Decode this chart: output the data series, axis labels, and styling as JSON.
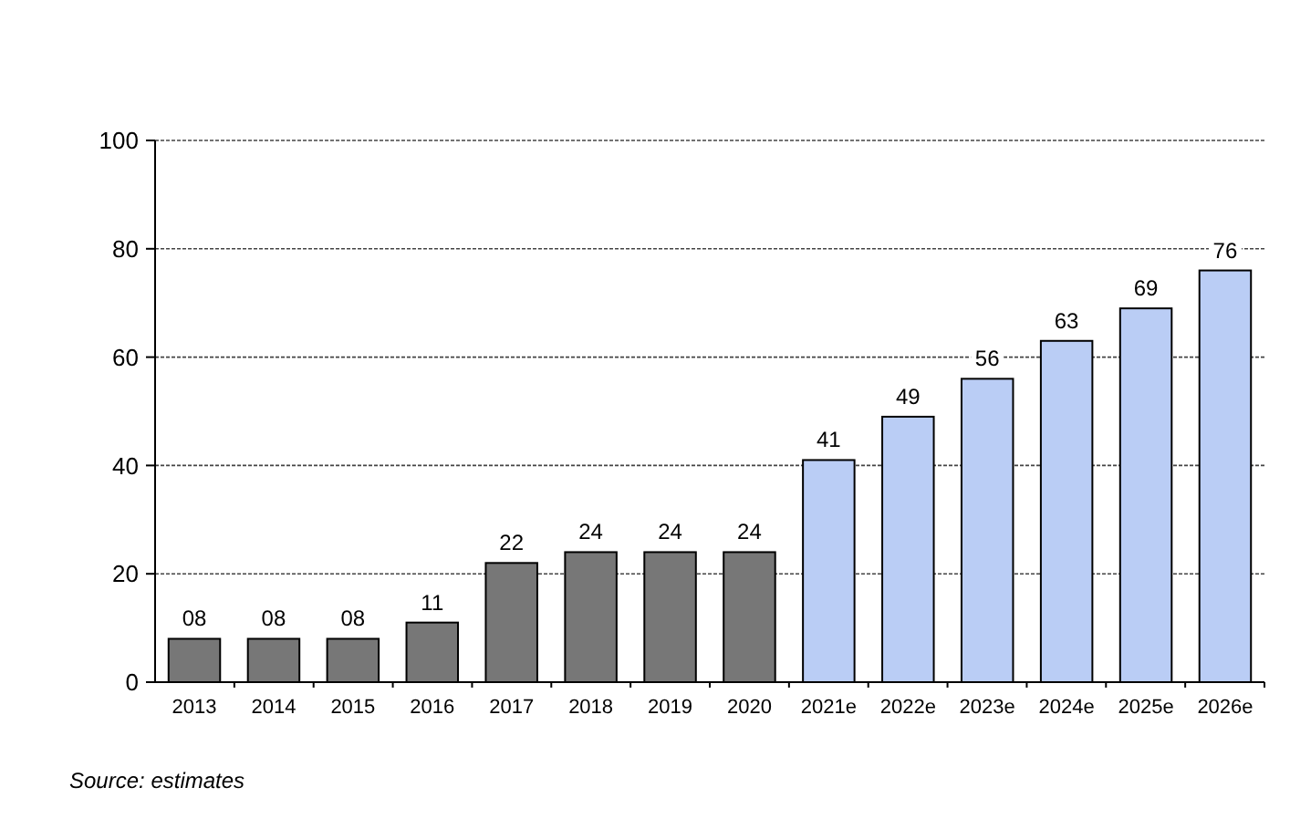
{
  "chart_data": {
    "type": "bar",
    "categories": [
      "2013",
      "2014",
      "2015",
      "2016",
      "2017",
      "2018",
      "2019",
      "2020",
      "2021e",
      "2022e",
      "2023e",
      "2024e",
      "2025e",
      "2026e"
    ],
    "values": [
      8,
      8,
      8,
      11,
      22,
      24,
      24,
      24,
      41,
      49,
      56,
      63,
      69,
      76
    ],
    "value_labels": [
      "08",
      "08",
      "08",
      "11",
      "22",
      "24",
      "24",
      "24",
      "41",
      "49",
      "56",
      "63",
      "69",
      "76"
    ],
    "colors": [
      "#777777",
      "#777777",
      "#777777",
      "#777777",
      "#777777",
      "#777777",
      "#777777",
      "#777777",
      "#bacdf5",
      "#bacdf5",
      "#bacdf5",
      "#bacdf5",
      "#bacdf5",
      "#bacdf5"
    ],
    "ylim": [
      0,
      100
    ],
    "yticks": [
      0,
      20,
      40,
      60,
      80,
      100
    ],
    "grid": "y",
    "annotations": [
      "Source: estimates"
    ]
  }
}
